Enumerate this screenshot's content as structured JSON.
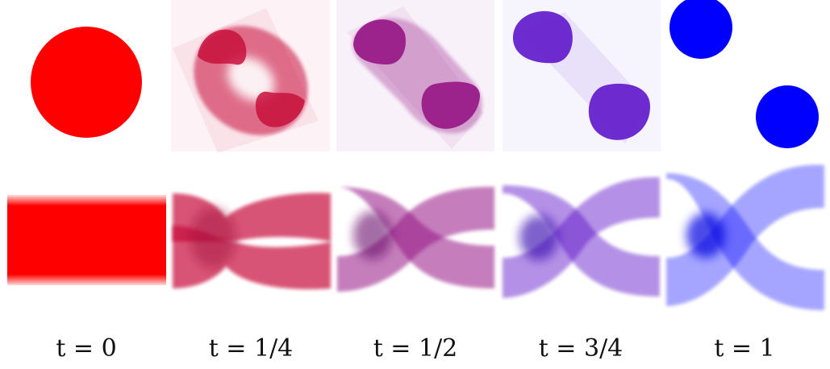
{
  "colors": {
    "t0": "#ff0000",
    "t14": "#c8103c",
    "t12": "#961485",
    "t34": "#5a10c8",
    "t1": "#0000ff"
  },
  "frames": [
    {
      "id": "t0",
      "color": "#ff0000",
      "label": "t = 0"
    },
    {
      "id": "t14",
      "color": "#c8103c",
      "label": "t = 1/4"
    },
    {
      "id": "t12",
      "color": "#961485",
      "label": "t = 1/2"
    },
    {
      "id": "t34",
      "color": "#5a10c8",
      "label": "t = 3/4"
    },
    {
      "id": "t1",
      "color": "#0000ff",
      "label": "t = 1"
    }
  ]
}
